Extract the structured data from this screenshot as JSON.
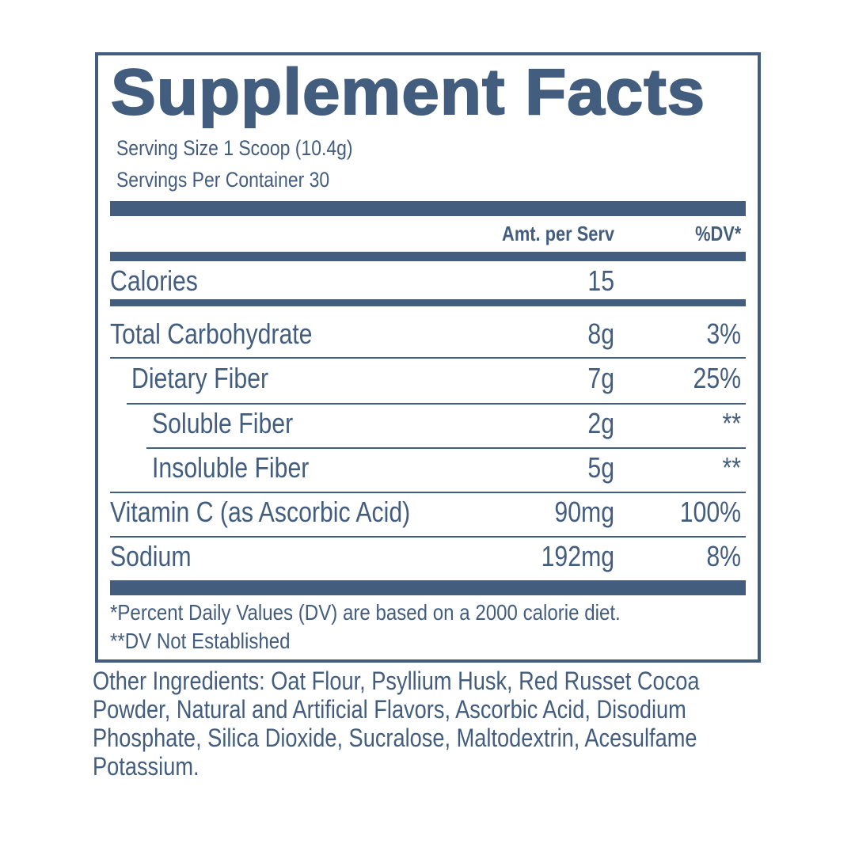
{
  "title": "Supplement Facts",
  "serving_size": "Serving Size 1 Scoop (10.4g)",
  "servings_per_container": "Servings Per Container 30",
  "columns": {
    "amount": "Amt. per Serv",
    "dv": "%DV*"
  },
  "calories": {
    "label": "Calories",
    "amount": "15",
    "dv": ""
  },
  "nutrients": [
    {
      "label": "Total Carbohydrate",
      "amount": "8g",
      "dv": "3%"
    },
    {
      "label": "Dietary Fiber",
      "amount": "7g",
      "dv": "25%"
    },
    {
      "label": "Soluble Fiber",
      "amount": "2g",
      "dv": "**"
    },
    {
      "label": "Insoluble Fiber",
      "amount": "5g",
      "dv": "**"
    },
    {
      "label": "Vitamin C (as Ascorbic Acid)",
      "amount": "90mg",
      "dv": "100%"
    },
    {
      "label": "Sodium",
      "amount": "192mg",
      "dv": "8%"
    }
  ],
  "footnotes": [
    "*Percent Daily Values (DV) are based on a 2000 calorie diet.",
    "**DV Not Established"
  ],
  "other_ingredients": [
    "Other Ingredients: Oat Flour, Psyllium Husk, Red Russet Cocoa",
    "Powder, Natural and Artificial Flavors, Ascorbic Acid, Disodium",
    "Phosphate, Silica Dioxide, Sucralose, Maltodextrin, Acesulfame",
    "Potassium."
  ],
  "colors": {
    "label": "#435d7e",
    "background": "#ffffff"
  }
}
